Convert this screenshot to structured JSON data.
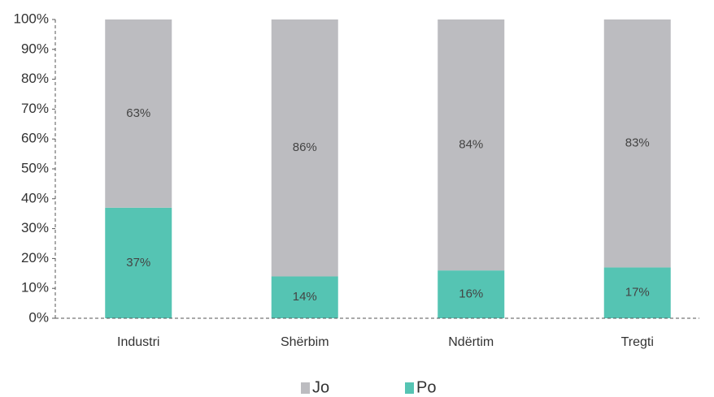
{
  "chart_data": {
    "type": "stacked_bar",
    "categories": [
      "Industri",
      "Shërbim",
      "Ndërtim",
      "Tregti"
    ],
    "series": [
      {
        "name": "Po",
        "color": "#55c4b3",
        "values": [
          37,
          14,
          16,
          17
        ],
        "value_labels": [
          "37%",
          "14%",
          "16%",
          "17%"
        ]
      },
      {
        "name": "Jo",
        "color": "#bcbcc0",
        "values": [
          63,
          86,
          84,
          83
        ],
        "value_labels": [
          "63%",
          "86%",
          "84%",
          "83%"
        ]
      }
    ],
    "ylim": [
      0,
      100
    ],
    "yticks": [
      {
        "value": 0,
        "label": "0%"
      },
      {
        "value": 10,
        "label": "10%"
      },
      {
        "value": 20,
        "label": "20%"
      },
      {
        "value": 30,
        "label": "30%"
      },
      {
        "value": 40,
        "label": "40%"
      },
      {
        "value": 50,
        "label": "50%"
      },
      {
        "value": 60,
        "label": "60%"
      },
      {
        "value": 70,
        "label": "70%"
      },
      {
        "value": 80,
        "label": "80%"
      },
      {
        "value": 90,
        "label": "90%"
      },
      {
        "value": 100,
        "label": "100%"
      }
    ],
    "legend": "bottom"
  }
}
